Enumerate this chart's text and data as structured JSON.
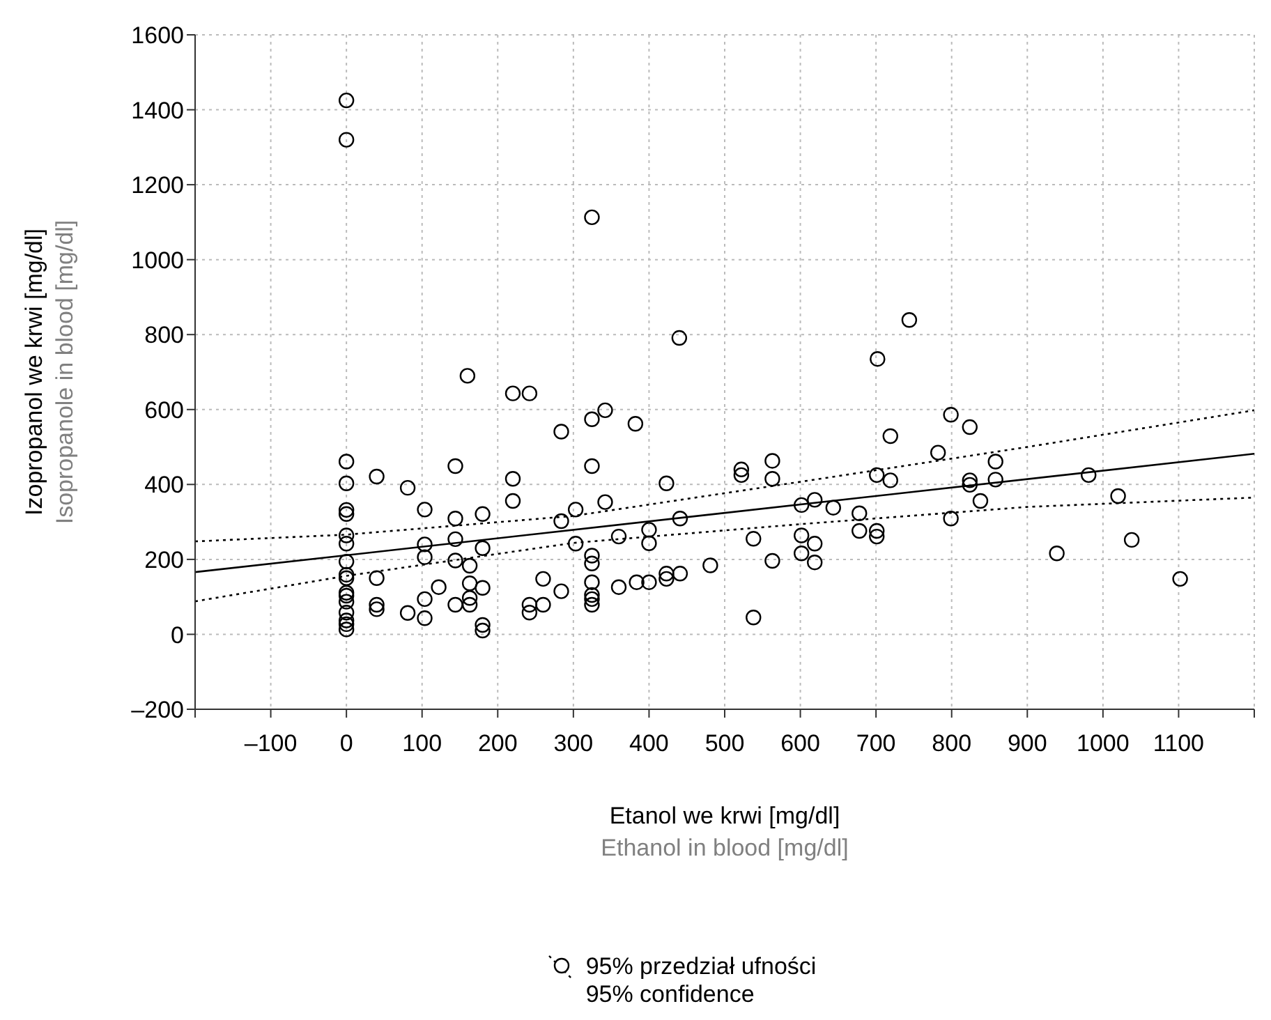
{
  "chart_data": {
    "type": "scatter",
    "xlabel": "Etanol we krwi [mg/dl]\nEthanol in blood [mg/dl]",
    "ylabel": "Izopropanol we krwi [mg/dl]\nIsopropanole in blood [mg/dl]",
    "xlim": [
      -200,
      1200
    ],
    "xticks": [
      {
        "value": -200,
        "label": null
      },
      {
        "value": -100,
        "label": "–100"
      },
      0,
      100,
      200,
      300,
      400,
      500,
      600,
      700,
      800,
      900,
      1000,
      1100,
      {
        "value": 1200,
        "label": null
      }
    ],
    "ylim": [
      -200,
      1600
    ],
    "yticks": [
      {
        "value": -200,
        "label": "–200"
      },
      0,
      200,
      400,
      600,
      800,
      1000,
      1200,
      1400,
      1600
    ],
    "grid": true,
    "legend": "bottom",
    "marker": "circle",
    "series": [
      {
        "color": "#000000",
        "x": [
          0,
          0,
          324.5,
          440,
          160,
          744,
          702,
          0,
          0,
          0,
          0,
          0,
          0,
          0,
          0,
          0,
          0,
          0,
          0,
          0,
          0,
          0,
          0,
          40,
          40,
          40,
          40,
          81,
          81,
          103.5,
          103.5,
          103.5,
          103.5,
          103.5,
          122,
          144,
          144,
          144,
          144,
          144,
          163,
          163,
          163,
          163,
          180,
          180,
          180,
          180,
          180,
          220,
          242,
          220,
          220,
          242,
          242,
          260,
          260,
          284,
          284,
          284,
          303,
          303,
          324.5,
          324.5,
          324.5,
          324.5,
          324.5,
          324.5,
          324.5,
          324.5,
          342,
          342,
          360,
          360,
          382,
          383.6,
          400,
          400,
          400,
          423,
          423,
          423,
          441,
          441,
          481,
          522,
          522,
          538,
          538,
          563,
          563,
          563,
          601.5,
          601.5,
          601.5,
          619,
          619,
          619,
          643.5,
          678,
          678,
          701,
          701,
          701,
          719,
          719,
          782,
          799,
          799,
          824,
          824,
          824,
          838,
          858,
          858,
          939,
          981,
          1020,
          1038,
          1102
        ],
        "values": [
          1425,
          1320,
          1113,
          791,
          690,
          839,
          735,
          461,
          403,
          332,
          321,
          264,
          242,
          194,
          159,
          150,
          111,
          103,
          87,
          58,
          37,
          27,
          13,
          421,
          150,
          79,
          67,
          391,
          57,
          333,
          240,
          206,
          94,
          43,
          126,
          449,
          309,
          254,
          197,
          79,
          183,
          136,
          97,
          79,
          321,
          230,
          124,
          25,
          10,
          643,
          643,
          415,
          356,
          79,
          58,
          148,
          79,
          541,
          302,
          115,
          333,
          242,
          574,
          449,
          210,
          189,
          139,
          105,
          94,
          79,
          598,
          353,
          261,
          126,
          562,
          139,
          279,
          243,
          139,
          403,
          162,
          148,
          309,
          162,
          184,
          440,
          425,
          255,
          45,
          463,
          415,
          196,
          345,
          264,
          216,
          359,
          242,
          192,
          338,
          323,
          276,
          276,
          261,
          425,
          529,
          411,
          485,
          586,
          309,
          553,
          411,
          399,
          356,
          461,
          413,
          216,
          425,
          369,
          252,
          148
        ]
      },
      {
        "type": "line",
        "color": "#000000",
        "line_style": "solid",
        "marker": "none",
        "x": [
          -200,
          1200
        ],
        "values": [
          166,
          482
        ]
      },
      {
        "type": "line",
        "name": "95% przedział ufności\n95% confidence",
        "color": "#000000",
        "line_style": "dotted",
        "marker": "none",
        "x": [
          -200,
          0,
          300,
          600,
          900,
          1200
        ],
        "values": [
          248,
          266,
          316,
          407,
          500,
          598
        ]
      },
      {
        "type": "line",
        "color": "#000000",
        "line_style": "dotted",
        "marker": "none",
        "x": [
          -200,
          0,
          300,
          600,
          900,
          1200
        ],
        "values": [
          88,
          156,
          244,
          294,
          340,
          365
        ]
      }
    ]
  }
}
